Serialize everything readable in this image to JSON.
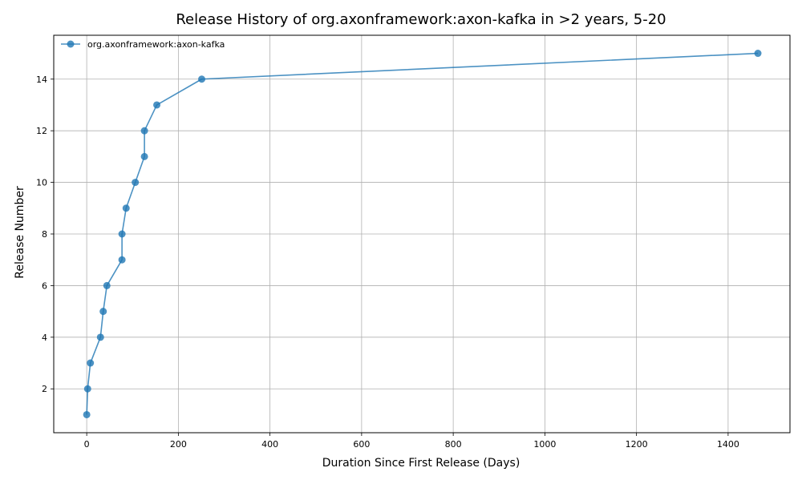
{
  "chart_data": {
    "type": "line",
    "title": "Release History of org.axonframework:axon-kafka in >2 years, 5-20",
    "xlabel": "Duration Since First Release (Days)",
    "ylabel": "Release Number",
    "xlim": [
      -72,
      1535
    ],
    "ylim": [
      0.3,
      15.7
    ],
    "xticks": [
      0,
      200,
      400,
      600,
      800,
      1000,
      1200,
      1400
    ],
    "yticks": [
      2,
      4,
      6,
      8,
      10,
      12,
      14
    ],
    "grid": true,
    "legend_position": "top-left",
    "series": [
      {
        "name": "org.axonframework:axon-kafka",
        "color": "#1f77b4",
        "marker": "circle",
        "x": [
          0,
          2,
          8,
          30,
          36,
          44,
          77,
          77,
          86,
          106,
          126,
          126,
          153,
          251,
          1465
        ],
        "y": [
          1,
          2,
          3,
          4,
          5,
          6,
          7,
          8,
          9,
          10,
          11,
          12,
          13,
          14,
          15
        ]
      }
    ]
  }
}
